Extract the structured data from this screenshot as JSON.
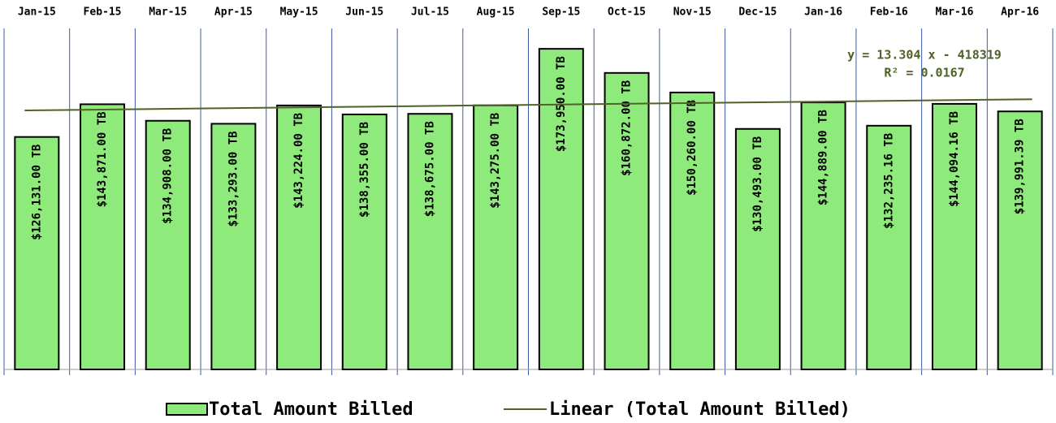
{
  "chart_data": {
    "type": "bar",
    "categories": [
      "Jan-15",
      "Feb-15",
      "Mar-15",
      "Apr-15",
      "May-15",
      "Jun-15",
      "Jul-15",
      "Aug-15",
      "Sep-15",
      "Oct-15",
      "Nov-15",
      "Dec-15",
      "Jan-16",
      "Feb-16",
      "Mar-16",
      "Apr-16"
    ],
    "series": [
      {
        "name": "Total Amount Billed",
        "color": "#8fea7c",
        "values": [
          126131,
          143871,
          134908,
          133293,
          143224,
          138355,
          138675,
          143275,
          173950,
          160872,
          150260,
          130493,
          144889,
          132235.16,
          144094.16,
          139991.39
        ],
        "value_labels": [
          "$126,131.00 TB",
          "$143,871.00 TB",
          "$134,908.00 TB",
          "$133,293.00 TB",
          "$143,224.00 TB",
          "$138,355.00 TB",
          "$138,675.00 TB",
          "$143,275.00 TB",
          "$173,950.00 TB",
          "$160,872.00 TB",
          "$150,260.00 TB",
          "$130,493.00 TB",
          "$144,889.00 TB",
          "$132,235.16 TB",
          "$144,094.16 TB",
          "$139,991.39 TB"
        ]
      }
    ],
    "trendline": {
      "name": "Linear (Total Amount Billed)",
      "color": "#4f6228",
      "equation": "y = 13.304 x - 418319",
      "r_squared": "R² = 0.0167",
      "values": [
        140516,
        146582
      ]
    },
    "ylim": [
      0,
      200000
    ],
    "grid": true
  }
}
